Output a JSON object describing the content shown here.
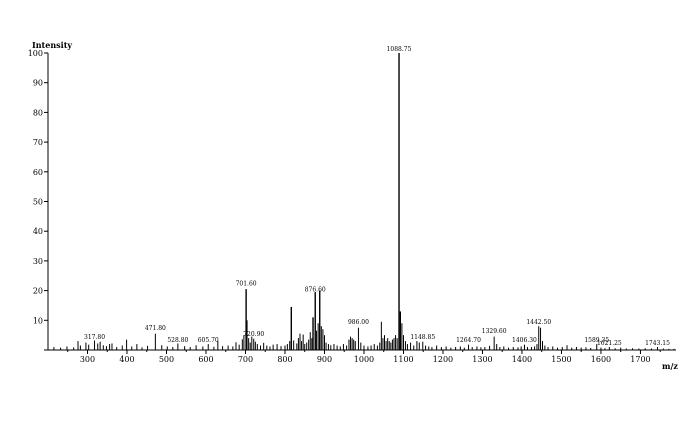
{
  "chart_data": {
    "type": "bar",
    "title": "",
    "ylabel": "Intensity",
    "xlabel": "m/z",
    "xlim": [
      200,
      1790
    ],
    "ylim": [
      0,
      100
    ],
    "x_ticks": [
      300,
      400,
      500,
      600,
      700,
      800,
      900,
      1000,
      1100,
      1200,
      1300,
      1400,
      1500,
      1600,
      1700
    ],
    "y_ticks": [
      0,
      10,
      20,
      30,
      40,
      50,
      60,
      70,
      80,
      90,
      100
    ],
    "grid": false,
    "line_color": "#000000",
    "labeled_peaks": [
      {
        "mz": 317.8,
        "intensity": 3,
        "label": "317.80"
      },
      {
        "mz": 471.8,
        "intensity": 6,
        "label": "471.80"
      },
      {
        "mz": 528.8,
        "intensity": 2,
        "label": "528.80"
      },
      {
        "mz": 605.7,
        "intensity": 2,
        "label": "605.70"
      },
      {
        "mz": 701.6,
        "intensity": 21,
        "label": "701.60"
      },
      {
        "mz": 720.9,
        "intensity": 4,
        "label": "720.90"
      },
      {
        "mz": 876.6,
        "intensity": 19,
        "label": "876.60"
      },
      {
        "mz": 986.0,
        "intensity": 8,
        "label": "986.00"
      },
      {
        "mz": 1088.75,
        "intensity": 100,
        "label": "1088.75"
      },
      {
        "mz": 1148.85,
        "intensity": 3,
        "label": "1148.85"
      },
      {
        "mz": 1264.7,
        "intensity": 2,
        "label": "1264.70"
      },
      {
        "mz": 1329.6,
        "intensity": 5,
        "label": "1329.60"
      },
      {
        "mz": 1406.3,
        "intensity": 2,
        "label": "1406.30"
      },
      {
        "mz": 1442.5,
        "intensity": 8,
        "label": "1442.50"
      },
      {
        "mz": 1589.35,
        "intensity": 2,
        "label": "1589.35"
      },
      {
        "mz": 1621.25,
        "intensity": 1,
        "label": "1621.25"
      },
      {
        "mz": 1743.15,
        "intensity": 1,
        "label": "1743.15"
      }
    ],
    "peaks": [
      [
        215,
        1.0
      ],
      [
        232,
        0.8
      ],
      [
        248,
        1.2
      ],
      [
        265,
        0.9
      ],
      [
        276,
        3.0
      ],
      [
        282,
        1.5
      ],
      [
        296,
        2.5
      ],
      [
        303,
        1.8
      ],
      [
        317.8,
        3.2
      ],
      [
        326,
        2.2
      ],
      [
        332,
        2.8
      ],
      [
        340,
        1.6
      ],
      [
        348,
        1.3
      ],
      [
        356,
        2.0
      ],
      [
        362,
        2.2
      ],
      [
        374,
        1.0
      ],
      [
        388,
        1.5
      ],
      [
        399,
        3.5
      ],
      [
        412,
        1.2
      ],
      [
        425,
        2.0
      ],
      [
        438,
        0.9
      ],
      [
        452,
        1.4
      ],
      [
        471.8,
        5.5
      ],
      [
        488,
        1.6
      ],
      [
        502,
        1.2
      ],
      [
        516,
        1.0
      ],
      [
        528.8,
        2.2
      ],
      [
        546,
        1.3
      ],
      [
        560,
        1.0
      ],
      [
        575,
        1.6
      ],
      [
        592,
        1.2
      ],
      [
        605.7,
        2.0
      ],
      [
        620,
        1.1
      ],
      [
        630,
        3.0
      ],
      [
        642,
        1.3
      ],
      [
        656,
        1.5
      ],
      [
        668,
        1.2
      ],
      [
        676,
        2.6
      ],
      [
        684,
        1.8
      ],
      [
        692,
        3.6
      ],
      [
        696,
        5.0
      ],
      [
        701.6,
        20.5
      ],
      [
        704,
        10.0
      ],
      [
        708,
        4.0
      ],
      [
        712,
        2.5
      ],
      [
        716,
        4.5
      ],
      [
        720.9,
        3.8
      ],
      [
        725,
        2.8
      ],
      [
        730,
        2.0
      ],
      [
        738,
        1.5
      ],
      [
        746,
        2.4
      ],
      [
        754,
        1.5
      ],
      [
        762,
        1.2
      ],
      [
        770,
        1.8
      ],
      [
        780,
        2.0
      ],
      [
        790,
        1.3
      ],
      [
        800,
        1.5
      ],
      [
        806,
        2.0
      ],
      [
        812,
        3.0
      ],
      [
        816,
        14.5
      ],
      [
        822,
        3.2
      ],
      [
        830,
        2.2
      ],
      [
        834,
        4.0
      ],
      [
        838,
        5.5
      ],
      [
        842,
        3.0
      ],
      [
        846,
        5.2
      ],
      [
        850,
        2.0
      ],
      [
        855,
        2.5
      ],
      [
        860,
        3.5
      ],
      [
        864,
        6.0
      ],
      [
        868,
        4.0
      ],
      [
        871,
        11.0
      ],
      [
        876.6,
        19.5
      ],
      [
        880,
        6.5
      ],
      [
        884,
        9.0
      ],
      [
        888,
        20.0
      ],
      [
        892,
        8.0
      ],
      [
        896,
        7.0
      ],
      [
        900,
        5.0
      ],
      [
        904,
        2.5
      ],
      [
        910,
        2.0
      ],
      [
        916,
        1.6
      ],
      [
        924,
        2.0
      ],
      [
        932,
        1.5
      ],
      [
        940,
        1.2
      ],
      [
        948,
        2.0
      ],
      [
        956,
        1.5
      ],
      [
        962,
        3.5
      ],
      [
        966,
        4.5
      ],
      [
        970,
        4.0
      ],
      [
        974,
        3.5
      ],
      [
        978,
        3.0
      ],
      [
        986,
        7.5
      ],
      [
        992,
        2.5
      ],
      [
        1000,
        1.5
      ],
      [
        1010,
        1.2
      ],
      [
        1018,
        1.5
      ],
      [
        1026,
        2.0
      ],
      [
        1034,
        1.5
      ],
      [
        1040,
        2.5
      ],
      [
        1044,
        9.5
      ],
      [
        1048,
        4.0
      ],
      [
        1052,
        5.0
      ],
      [
        1056,
        3.0
      ],
      [
        1060,
        4.0
      ],
      [
        1064,
        3.0
      ],
      [
        1068,
        2.5
      ],
      [
        1072,
        3.5
      ],
      [
        1076,
        4.0
      ],
      [
        1080,
        5.0
      ],
      [
        1084,
        4.0
      ],
      [
        1088.75,
        100
      ],
      [
        1092,
        13.0
      ],
      [
        1096,
        9.0
      ],
      [
        1100,
        5.0
      ],
      [
        1105,
        3.0
      ],
      [
        1110,
        2.0
      ],
      [
        1118,
        2.5
      ],
      [
        1126,
        1.5
      ],
      [
        1134,
        3.0
      ],
      [
        1140,
        2.5
      ],
      [
        1148.85,
        2.8
      ],
      [
        1156,
        1.5
      ],
      [
        1164,
        1.2
      ],
      [
        1172,
        1.0
      ],
      [
        1184,
        1.5
      ],
      [
        1196,
        1.0
      ],
      [
        1208,
        1.2
      ],
      [
        1220,
        0.8
      ],
      [
        1232,
        1.0
      ],
      [
        1244,
        1.2
      ],
      [
        1254,
        0.8
      ],
      [
        1264.7,
        1.8
      ],
      [
        1274,
        1.0
      ],
      [
        1286,
        1.2
      ],
      [
        1296,
        0.9
      ],
      [
        1306,
        1.0
      ],
      [
        1318,
        1.4
      ],
      [
        1329.6,
        4.5
      ],
      [
        1336,
        2.0
      ],
      [
        1344,
        1.0
      ],
      [
        1354,
        1.2
      ],
      [
        1366,
        0.8
      ],
      [
        1378,
        1.0
      ],
      [
        1390,
        0.9
      ],
      [
        1398,
        1.2
      ],
      [
        1406.3,
        1.8
      ],
      [
        1414,
        1.0
      ],
      [
        1424,
        1.0
      ],
      [
        1432,
        1.2
      ],
      [
        1438,
        2.0
      ],
      [
        1442.5,
        8.0
      ],
      [
        1447,
        7.5
      ],
      [
        1452,
        3.0
      ],
      [
        1458,
        1.5
      ],
      [
        1466,
        1.0
      ],
      [
        1478,
        1.2
      ],
      [
        1490,
        0.8
      ],
      [
        1502,
        1.0
      ],
      [
        1514,
        1.6
      ],
      [
        1526,
        0.8
      ],
      [
        1538,
        1.0
      ],
      [
        1550,
        0.8
      ],
      [
        1562,
        0.9
      ],
      [
        1574,
        0.7
      ],
      [
        1589.35,
        2.0
      ],
      [
        1600,
        0.8
      ],
      [
        1610,
        0.6
      ],
      [
        1621.25,
        1.0
      ],
      [
        1636,
        0.6
      ],
      [
        1650,
        0.8
      ],
      [
        1664,
        0.5
      ],
      [
        1680,
        0.6
      ],
      [
        1696,
        0.5
      ],
      [
        1712,
        0.6
      ],
      [
        1728,
        0.5
      ],
      [
        1743.15,
        1.0
      ],
      [
        1758,
        0.5
      ],
      [
        1772,
        0.4
      ],
      [
        1785,
        0.4
      ]
    ]
  }
}
